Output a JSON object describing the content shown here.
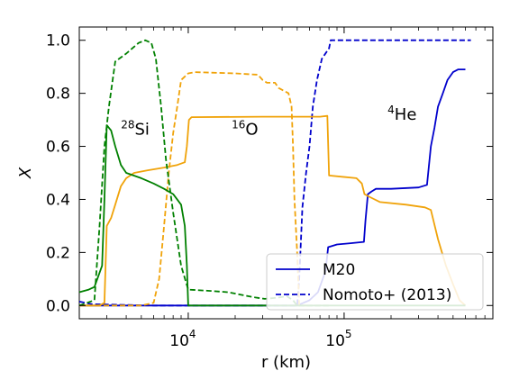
{
  "chart_data": {
    "type": "line",
    "xlabel": "r (km)",
    "ylabel": "X",
    "xscale": "log",
    "xlim": [
      2000,
      900000
    ],
    "ylim": [
      -0.05,
      1.05
    ],
    "x_ticks": [
      {
        "value": 10000,
        "base": "10",
        "exp": "4"
      },
      {
        "value": 100000,
        "base": "10",
        "exp": "5"
      }
    ],
    "y_ticks": [
      "0.0",
      "0.2",
      "0.4",
      "0.6",
      "0.8",
      "1.0"
    ],
    "legend": {
      "position": "lower-right",
      "entries": [
        {
          "label": "M20",
          "style": "solid",
          "color": "#0000cc"
        },
        {
          "label": "Nomoto+ (2013)",
          "style": "dashed",
          "color": "#0000cc"
        }
      ]
    },
    "annotations": [
      {
        "sup": "28",
        "text": "Si",
        "x": 3700,
        "y": 0.645
      },
      {
        "sup": "16",
        "text": "O",
        "x": 19000,
        "y": 0.645
      },
      {
        "sup": "4",
        "text": "He",
        "x": 190000,
        "y": 0.7
      }
    ],
    "series": [
      {
        "color": "#0000cc",
        "style": "solid",
        "points": [
          [
            2000,
            0.0
          ],
          [
            7000,
            0.0
          ],
          [
            50000,
            0.0
          ],
          [
            60000,
            0.02
          ],
          [
            68000,
            0.05
          ],
          [
            76000,
            0.13
          ],
          [
            79000,
            0.22
          ],
          [
            90000,
            0.23
          ],
          [
            110000,
            0.235
          ],
          [
            134000,
            0.24
          ],
          [
            137000,
            0.32
          ],
          [
            142000,
            0.42
          ],
          [
            150000,
            0.43
          ],
          [
            160000,
            0.44
          ],
          [
            200000,
            0.44
          ],
          [
            300000,
            0.445
          ],
          [
            340000,
            0.455
          ],
          [
            360000,
            0.6
          ],
          [
            380000,
            0.67
          ],
          [
            400000,
            0.75
          ],
          [
            430000,
            0.8
          ],
          [
            460000,
            0.85
          ],
          [
            500000,
            0.88
          ],
          [
            540000,
            0.89
          ],
          [
            600000,
            0.89
          ]
        ]
      },
      {
        "color": "#0000cc",
        "style": "dashed",
        "points": [
          [
            2000,
            0.015
          ],
          [
            2400,
            0.005
          ],
          [
            6000,
            0.0
          ],
          [
            30000,
            0.0
          ],
          [
            50000,
            0.0
          ],
          [
            51500,
            0.1
          ],
          [
            54000,
            0.37
          ],
          [
            57000,
            0.5
          ],
          [
            60000,
            0.6
          ],
          [
            63000,
            0.75
          ],
          [
            67000,
            0.85
          ],
          [
            72000,
            0.93
          ],
          [
            80000,
            0.97
          ],
          [
            82000,
            1.0
          ],
          [
            150000,
            1.0
          ],
          [
            300000,
            1.0
          ],
          [
            650000,
            1.0
          ]
        ]
      },
      {
        "color": "#f0a30a",
        "style": "solid",
        "points": [
          [
            2000,
            0.0
          ],
          [
            2700,
            0.0
          ],
          [
            2900,
            0.01
          ],
          [
            3000,
            0.3
          ],
          [
            3200,
            0.33
          ],
          [
            3400,
            0.38
          ],
          [
            3700,
            0.45
          ],
          [
            4000,
            0.48
          ],
          [
            4500,
            0.5
          ],
          [
            5500,
            0.51
          ],
          [
            7000,
            0.52
          ],
          [
            8500,
            0.53
          ],
          [
            9500,
            0.54
          ],
          [
            9800,
            0.6
          ],
          [
            10100,
            0.7
          ],
          [
            10500,
            0.71
          ],
          [
            30000,
            0.712
          ],
          [
            70000,
            0.712
          ],
          [
            78000,
            0.715
          ],
          [
            80000,
            0.49
          ],
          [
            120000,
            0.48
          ],
          [
            130000,
            0.46
          ],
          [
            135000,
            0.42
          ],
          [
            145000,
            0.41
          ],
          [
            170000,
            0.39
          ],
          [
            250000,
            0.38
          ],
          [
            330000,
            0.37
          ],
          [
            360000,
            0.36
          ],
          [
            400000,
            0.25
          ],
          [
            450000,
            0.15
          ],
          [
            500000,
            0.08
          ],
          [
            550000,
            0.02
          ],
          [
            600000,
            0.0
          ]
        ]
      },
      {
        "color": "#f0a30a",
        "style": "dashed",
        "points": [
          [
            2000,
            0.0
          ],
          [
            5000,
            0.0
          ],
          [
            6000,
            0.01
          ],
          [
            6500,
            0.1
          ],
          [
            7000,
            0.3
          ],
          [
            7500,
            0.5
          ],
          [
            8000,
            0.65
          ],
          [
            8500,
            0.75
          ],
          [
            9000,
            0.85
          ],
          [
            10000,
            0.875
          ],
          [
            11000,
            0.88
          ],
          [
            20000,
            0.875
          ],
          [
            28000,
            0.87
          ],
          [
            30000,
            0.85
          ],
          [
            32000,
            0.84
          ],
          [
            36000,
            0.84
          ],
          [
            38000,
            0.82
          ],
          [
            44000,
            0.8
          ],
          [
            46000,
            0.75
          ],
          [
            47000,
            0.6
          ],
          [
            48000,
            0.4
          ],
          [
            50000,
            0.2
          ],
          [
            51500,
            0.0
          ],
          [
            60000,
            0.0
          ]
        ]
      },
      {
        "color": "#008000",
        "style": "solid",
        "points": [
          [
            2000,
            0.05
          ],
          [
            2300,
            0.06
          ],
          [
            2500,
            0.07
          ],
          [
            2800,
            0.15
          ],
          [
            2900,
            0.4
          ],
          [
            3000,
            0.68
          ],
          [
            3200,
            0.66
          ],
          [
            3400,
            0.6
          ],
          [
            3700,
            0.53
          ],
          [
            4000,
            0.5
          ],
          [
            5000,
            0.48
          ],
          [
            6000,
            0.46
          ],
          [
            7000,
            0.44
          ],
          [
            8000,
            0.42
          ],
          [
            9000,
            0.38
          ],
          [
            9500,
            0.3
          ],
          [
            9800,
            0.15
          ],
          [
            10000,
            0.0
          ],
          [
            50000,
            0.0
          ],
          [
            300000,
            0.0
          ],
          [
            600000,
            0.0
          ]
        ]
      },
      {
        "color": "#008000",
        "style": "dashed",
        "points": [
          [
            2000,
            0.0
          ],
          [
            2500,
            0.02
          ],
          [
            2700,
            0.3
          ],
          [
            2900,
            0.6
          ],
          [
            3100,
            0.75
          ],
          [
            3400,
            0.92
          ],
          [
            4000,
            0.95
          ],
          [
            4800,
            0.99
          ],
          [
            5300,
            1.0
          ],
          [
            5800,
            0.99
          ],
          [
            6200,
            0.93
          ],
          [
            6700,
            0.75
          ],
          [
            7200,
            0.55
          ],
          [
            8000,
            0.35
          ],
          [
            9000,
            0.15
          ],
          [
            10000,
            0.06
          ],
          [
            14000,
            0.055
          ],
          [
            18000,
            0.05
          ],
          [
            22000,
            0.04
          ],
          [
            27000,
            0.03
          ],
          [
            31000,
            0.025
          ],
          [
            38000,
            0.03
          ],
          [
            43000,
            0.035
          ],
          [
            47000,
            0.02
          ],
          [
            50000,
            0.0
          ],
          [
            80000,
            0.0
          ]
        ]
      }
    ]
  }
}
